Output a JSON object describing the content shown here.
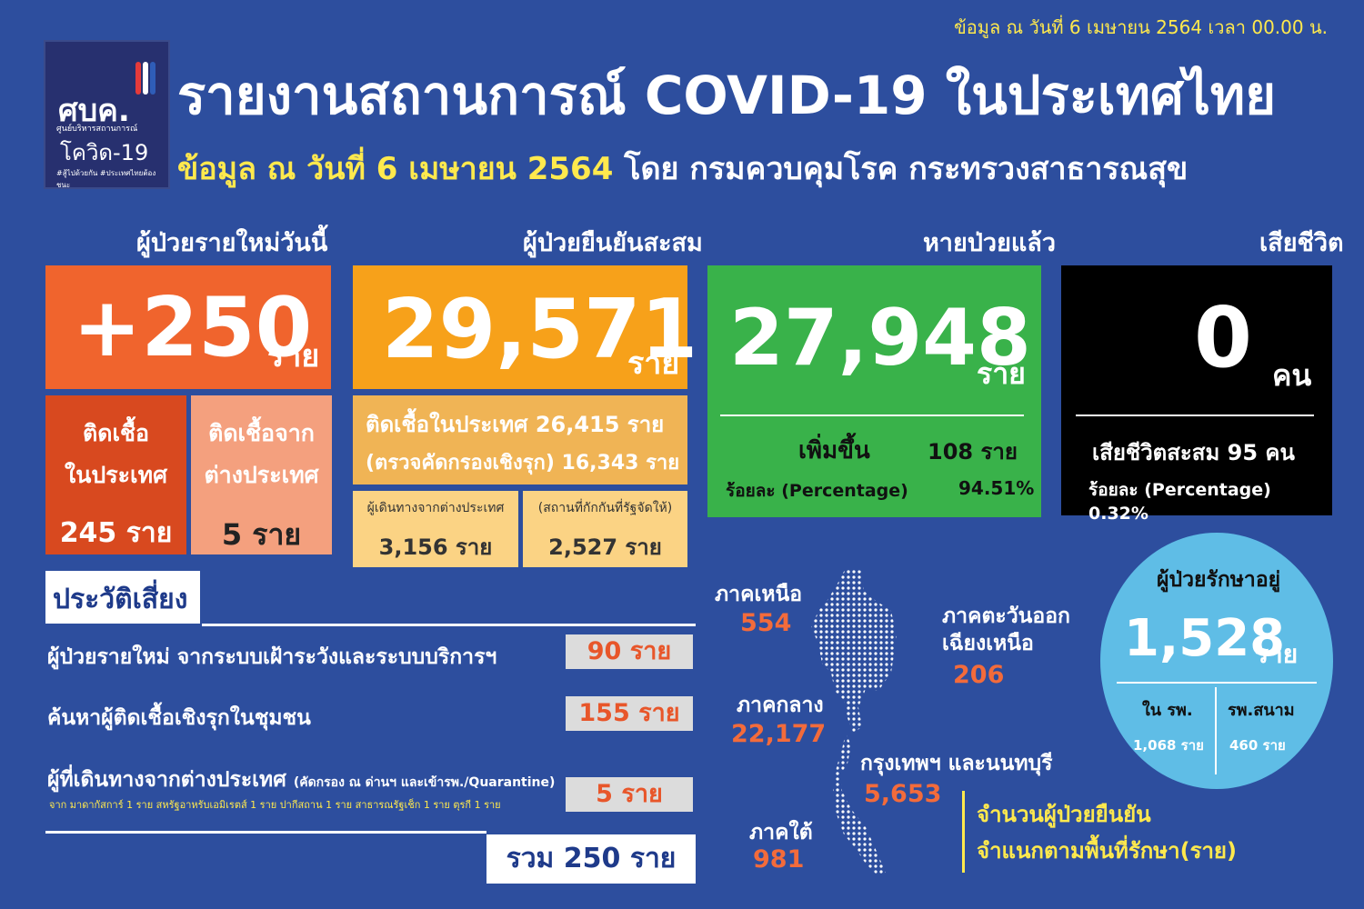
{
  "header": {
    "logo_abbr": "ศบค.",
    "logo_sub": "ศูนย์บริหารสถานการณ์",
    "logo_covid": "โควิด-19",
    "logo_tag": "#สู้ไปด้วยกัน #ประเทศไทยต้องชนะ",
    "title": "รายงานสถานการณ์ COVID-19 ในประเทศไทย",
    "subtitle_date": "ข้อมูล ณ วันที่ 6 เมษายน 2564",
    "subtitle_source": " โดย กรมควบคุมโรค กระทรวงสาธารณสุข",
    "top_note": "ข้อมูล ณ วันที่ 6 เมษายน 2564 เวลา 00.00 น."
  },
  "new_cases": {
    "heading": "ผู้ป่วยรายใหม่วันนี้",
    "value": "+250",
    "unit": "ราย",
    "local_label_1": "ติดเชื้อ",
    "local_label_2": "ในประเทศ",
    "local_value": "245 ราย",
    "foreign_label_1": "ติดเชื้อจาก",
    "foreign_label_2": "ต่างประเทศ",
    "foreign_value": "5 ราย"
  },
  "cumulative": {
    "heading": "ผู้ป่วยยืนยันสะสม",
    "value": "29,571",
    "unit": "ราย",
    "local_line": "ติดเชื้อในประเทศ  26,415 ราย",
    "screen_line": "(ตรวจคัดกรองเชิงรุก) 16,343 ราย",
    "travel_label": "ผู้เดินทางจากต่างประเทศ",
    "travel_value": "3,156 ราย",
    "quarantine_label": "(สถานที่กักกันที่รัฐจัดให้)",
    "quarantine_value": "2,527 ราย"
  },
  "recovered": {
    "heading": "หายป่วยแล้ว",
    "value": "27,948",
    "unit": "ราย",
    "increase_label": "เพิ่มขึ้น",
    "increase_value": "108 ราย",
    "pct_label": "ร้อยละ (Percentage)",
    "pct_value": "94.51%"
  },
  "deaths": {
    "heading": "เสียชีวิต",
    "value": "0",
    "unit": "คน",
    "cum_line": "เสียชีวิตสะสม  95 คน",
    "pct_line": "ร้อยละ (Percentage) 0.32%"
  },
  "risk": {
    "heading": "ประวัติเสี่ยง",
    "row1_label": "ผู้ป่วยรายใหม่ จากระบบเฝ้าระวังและระบบบริการฯ",
    "row1_value": "90 ราย",
    "row2_label": "ค้นหาผู้ติดเชื้อเชิงรุกในชุมชน",
    "row2_value": "155 ราย",
    "row3_label": "ผู้ที่เดินทางจากต่างประเทศ",
    "row3_note": "(คัดกรอง ณ ด่านฯ และเข้ารพ./Quarantine)",
    "row3_detail": "จาก มาดากัสการ์ 1 ราย สหรัฐอาหรับเอมิเรตส์ 1 ราย ปากีสถาน 1 ราย สาธารณรัฐเช็ก 1 ราย ตุรกี 1 ราย",
    "row3_value": "5 ราย",
    "total": "รวม 250 ราย"
  },
  "regions": {
    "north_label": "ภาคเหนือ",
    "north_value": "554",
    "northeast_label_1": "ภาคตะวันออก",
    "northeast_label_2": "เฉียงเหนือ",
    "northeast_value": "206",
    "central_label": "ภาคกลาง",
    "central_value": "22,177",
    "bkk_label": "กรุงเทพฯ และนนทบุรี",
    "bkk_value": "5,653",
    "south_label": "ภาคใต้",
    "south_value": "981",
    "caption_1": "จำนวนผู้ป่วยยืนยัน",
    "caption_2": "จำแนกตามพื้นที่รักษา(ราย)"
  },
  "treating": {
    "heading": "ผู้ป่วยรักษาอยู่",
    "value": "1,528",
    "unit": "ราย",
    "hosp_label": "ใน รพ.",
    "hosp_value": "1,068 ราย",
    "field_label": "รพ.สนาม",
    "field_value": "460 ราย"
  },
  "colors": {
    "background": "#2d4e9e",
    "orange": "#f0642d",
    "amber": "#f7a11a",
    "green": "#39b24a",
    "black": "#000000",
    "light_blue": "#5fbde6",
    "yellow": "#ffe94d"
  }
}
